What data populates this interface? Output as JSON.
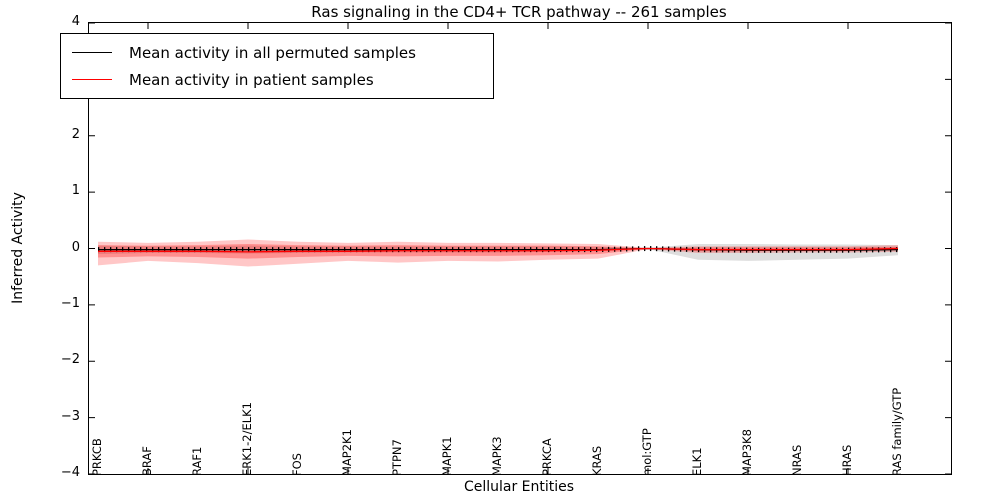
{
  "chart_data": {
    "type": "line",
    "title": "Ras signaling in the CD4+ TCR pathway -- 261 samples",
    "xlabel": "Cellular Entities",
    "ylabel": "Inferred Activity",
    "ylim": [
      -4,
      4
    ],
    "yticks": [
      -4,
      -3,
      -2,
      -1,
      0,
      1,
      2,
      3,
      4
    ],
    "xticks_at": [
      1,
      3,
      5,
      7,
      9,
      11,
      13,
      15
    ],
    "grid": false,
    "legend_position": "upper left",
    "categories": [
      "PRKCB",
      "BRAF",
      "RAF1",
      "ERK1-2/ELK1",
      "FOS",
      "MAP2K1",
      "PTPN7",
      "MAPK1",
      "MAPK3",
      "PRKCA",
      "KRAS",
      "mol:GTP",
      "ELK1",
      "MAP3K8",
      "NRAS",
      "HRAS",
      "RAS family/GTP"
    ],
    "series": [
      {
        "name": "Mean activity in all permuted samples",
        "color": "#000000",
        "values": [
          -0.02,
          -0.02,
          -0.02,
          -0.02,
          -0.02,
          -0.02,
          -0.02,
          -0.02,
          -0.02,
          -0.02,
          -0.02,
          0,
          -0.02,
          -0.03,
          -0.03,
          -0.03,
          -0.02
        ]
      },
      {
        "name": "Mean activity in patient samples",
        "color": "#ff0000",
        "values": [
          -0.05,
          -0.05,
          -0.05,
          -0.06,
          -0.05,
          -0.05,
          -0.04,
          -0.04,
          -0.04,
          -0.04,
          -0.03,
          0,
          -0.02,
          -0.02,
          -0.02,
          -0.02,
          0
        ]
      }
    ],
    "bands": [
      {
        "name": "permuted-samples-band",
        "color": "rgba(0,0,0,0.13)",
        "upper": [
          0.05,
          0.04,
          0.04,
          0.05,
          0.04,
          0.04,
          0.04,
          0.04,
          0.04,
          0.04,
          0.03,
          0.01,
          0.08,
          0.08,
          0.07,
          0.07,
          0.06
        ],
        "lower": [
          -0.1,
          -0.08,
          -0.08,
          -0.09,
          -0.08,
          -0.07,
          -0.07,
          -0.07,
          -0.07,
          -0.06,
          -0.05,
          -0.01,
          -0.2,
          -0.22,
          -0.2,
          -0.18,
          -0.12
        ]
      },
      {
        "name": "patient-samples-outer-band",
        "color": "rgba(255,0,0,0.22)",
        "upper": [
          0.12,
          0.1,
          0.12,
          0.16,
          0.12,
          0.1,
          0.12,
          0.1,
          0.1,
          0.09,
          0.08,
          0.01,
          0.04,
          0.04,
          0.04,
          0.04,
          0.06
        ],
        "lower": [
          -0.3,
          -0.22,
          -0.26,
          -0.32,
          -0.27,
          -0.22,
          -0.25,
          -0.22,
          -0.23,
          -0.2,
          -0.18,
          -0.01,
          -0.08,
          -0.08,
          -0.07,
          -0.07,
          -0.06
        ]
      },
      {
        "name": "patient-samples-inner-band",
        "color": "rgba(255,0,0,0.28)",
        "upper": [
          0.06,
          0.05,
          0.06,
          0.08,
          0.06,
          0.05,
          0.06,
          0.05,
          0.05,
          0.05,
          0.04,
          0.005,
          0.02,
          0.02,
          0.02,
          0.02,
          0.03
        ],
        "lower": [
          -0.16,
          -0.14,
          -0.15,
          -0.18,
          -0.15,
          -0.13,
          -0.14,
          -0.13,
          -0.13,
          -0.12,
          -0.1,
          -0.005,
          -0.05,
          -0.05,
          -0.04,
          -0.04,
          -0.03
        ]
      }
    ]
  },
  "legend": {
    "entries": [
      {
        "label": "Mean activity in all permuted samples",
        "color": "#000000"
      },
      {
        "label": "Mean activity in patient samples",
        "color": "#ff0000"
      }
    ]
  }
}
